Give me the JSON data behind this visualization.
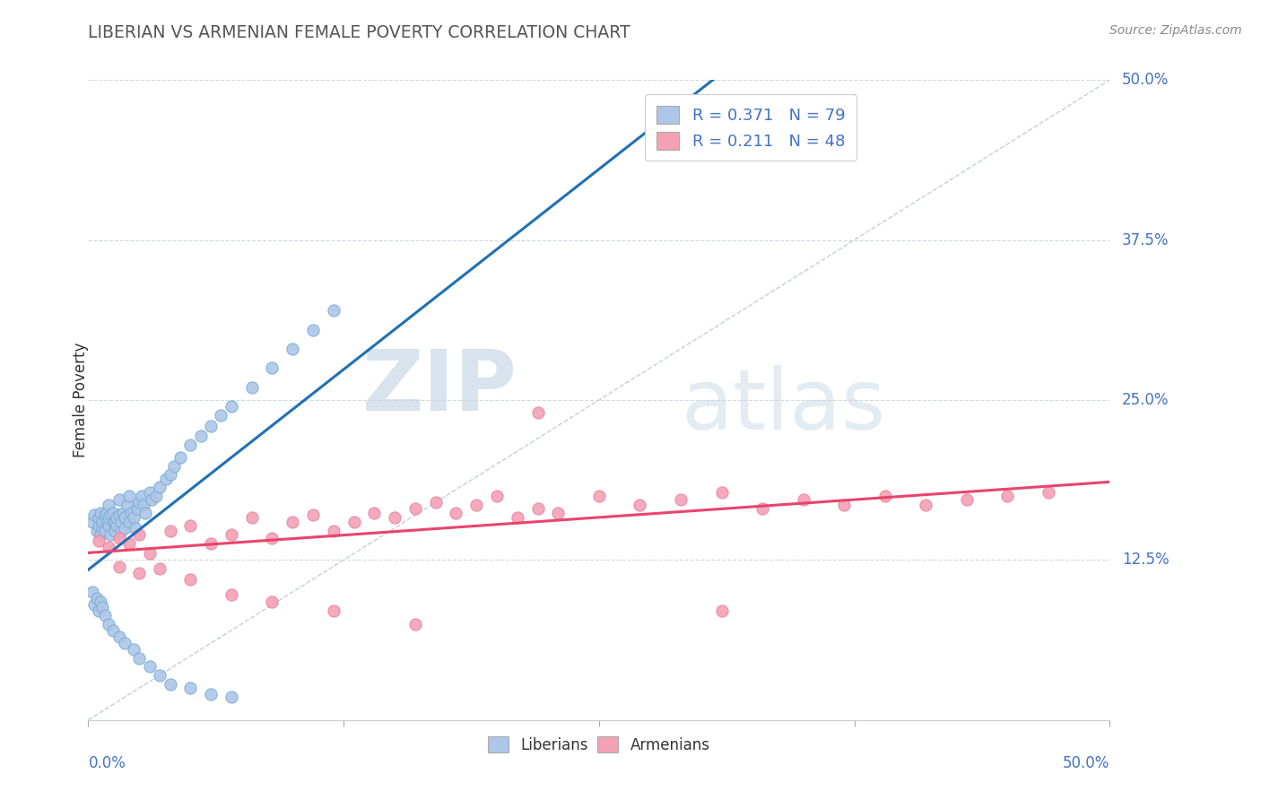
{
  "title": "LIBERIAN VS ARMENIAN FEMALE POVERTY CORRELATION CHART",
  "source": "Source: ZipAtlas.com",
  "ylabel": "Female Poverty",
  "liberian_R": 0.371,
  "liberian_N": 79,
  "armenian_R": 0.211,
  "armenian_N": 48,
  "liberian_color": "#aec6e8",
  "armenian_color": "#f4a0b5",
  "liberian_line_color": "#2070b4",
  "armenian_line_color": "#e8446c",
  "ref_line_color": "#b0c4d8",
  "background_color": "#ffffff",
  "grid_color": "#d0d8e0",
  "watermark_zip": "ZIP",
  "watermark_atlas": "atlas",
  "xmin": 0.0,
  "xmax": 0.5,
  "ymin": 0.0,
  "ymax": 0.5,
  "liberian_x": [
    0.002,
    0.003,
    0.004,
    0.005,
    0.005,
    0.006,
    0.006,
    0.007,
    0.007,
    0.008,
    0.008,
    0.009,
    0.009,
    0.01,
    0.01,
    0.01,
    0.011,
    0.011,
    0.012,
    0.012,
    0.013,
    0.013,
    0.014,
    0.014,
    0.015,
    0.015,
    0.016,
    0.016,
    0.017,
    0.018,
    0.018,
    0.019,
    0.02,
    0.02,
    0.021,
    0.022,
    0.023,
    0.024,
    0.025,
    0.026,
    0.027,
    0.028,
    0.03,
    0.031,
    0.033,
    0.035,
    0.038,
    0.04,
    0.042,
    0.045,
    0.05,
    0.055,
    0.06,
    0.065,
    0.07,
    0.08,
    0.09,
    0.1,
    0.11,
    0.12,
    0.002,
    0.003,
    0.004,
    0.005,
    0.006,
    0.007,
    0.008,
    0.01,
    0.012,
    0.015,
    0.018,
    0.022,
    0.025,
    0.03,
    0.035,
    0.04,
    0.05,
    0.06,
    0.07
  ],
  "liberian_y": [
    0.155,
    0.16,
    0.148,
    0.152,
    0.158,
    0.145,
    0.162,
    0.15,
    0.155,
    0.16,
    0.148,
    0.155,
    0.162,
    0.152,
    0.158,
    0.168,
    0.145,
    0.16,
    0.155,
    0.162,
    0.148,
    0.155,
    0.152,
    0.158,
    0.16,
    0.172,
    0.148,
    0.155,
    0.162,
    0.15,
    0.158,
    0.168,
    0.155,
    0.175,
    0.162,
    0.158,
    0.15,
    0.165,
    0.17,
    0.175,
    0.168,
    0.162,
    0.178,
    0.172,
    0.175,
    0.182,
    0.188,
    0.192,
    0.198,
    0.205,
    0.215,
    0.222,
    0.23,
    0.238,
    0.245,
    0.26,
    0.275,
    0.29,
    0.305,
    0.32,
    0.1,
    0.09,
    0.095,
    0.085,
    0.092,
    0.088,
    0.082,
    0.075,
    0.07,
    0.065,
    0.06,
    0.055,
    0.048,
    0.042,
    0.035,
    0.028,
    0.025,
    0.02,
    0.018
  ],
  "armenian_x": [
    0.005,
    0.01,
    0.015,
    0.02,
    0.025,
    0.03,
    0.04,
    0.05,
    0.06,
    0.07,
    0.08,
    0.09,
    0.1,
    0.11,
    0.12,
    0.13,
    0.14,
    0.15,
    0.16,
    0.17,
    0.18,
    0.19,
    0.2,
    0.21,
    0.22,
    0.23,
    0.25,
    0.27,
    0.29,
    0.31,
    0.33,
    0.35,
    0.37,
    0.39,
    0.41,
    0.43,
    0.45,
    0.47,
    0.015,
    0.025,
    0.035,
    0.05,
    0.07,
    0.09,
    0.12,
    0.16,
    0.22,
    0.31
  ],
  "armenian_y": [
    0.14,
    0.135,
    0.142,
    0.138,
    0.145,
    0.13,
    0.148,
    0.152,
    0.138,
    0.145,
    0.158,
    0.142,
    0.155,
    0.16,
    0.148,
    0.155,
    0.162,
    0.158,
    0.165,
    0.17,
    0.162,
    0.168,
    0.175,
    0.158,
    0.165,
    0.162,
    0.175,
    0.168,
    0.172,
    0.178,
    0.165,
    0.172,
    0.168,
    0.175,
    0.168,
    0.172,
    0.175,
    0.178,
    0.12,
    0.115,
    0.118,
    0.11,
    0.098,
    0.092,
    0.085,
    0.075,
    0.24,
    0.085
  ]
}
